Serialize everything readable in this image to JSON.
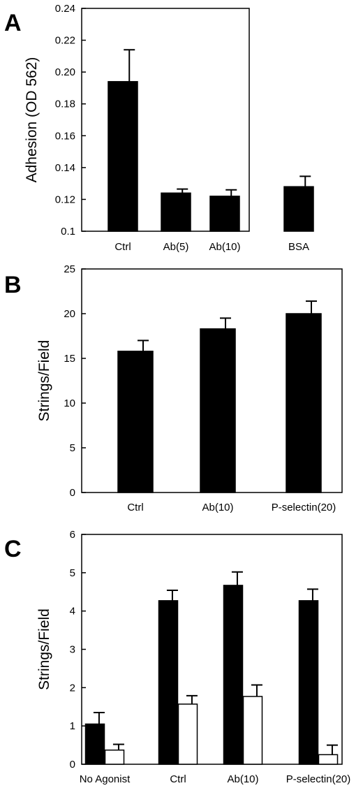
{
  "chart_data": [
    {
      "panel": "A",
      "type": "bar",
      "ylabel": "Adhesion (OD 562)",
      "xlabel": "",
      "ylim": [
        0.1,
        0.24
      ],
      "yticks": [
        "0.1",
        "0.12",
        "0.14",
        "0.16",
        "0.18",
        "0.20",
        "0.22",
        "0.24"
      ],
      "categories": [
        "Ctrl",
        "Ab(5)",
        "Ab(10)",
        "BSA"
      ],
      "series": [
        {
          "fill": "#000000",
          "values": [
            0.194,
            0.124,
            0.122,
            0.128
          ],
          "errors": [
            0.02,
            0.0025,
            0.004,
            0.0065
          ]
        }
      ]
    },
    {
      "panel": "B",
      "type": "bar",
      "ylabel": "Strings/Field",
      "xlabel": "",
      "ylim": [
        0,
        25
      ],
      "yticks": [
        "0",
        "5",
        "10",
        "15",
        "20",
        "25"
      ],
      "categories": [
        "Ctrl",
        "Ab(10)",
        "P-selectin(20)"
      ],
      "series": [
        {
          "fill": "#000000",
          "values": [
            15.8,
            18.3,
            20.0
          ],
          "errors": [
            1.2,
            1.2,
            1.4
          ]
        }
      ]
    },
    {
      "panel": "C",
      "type": "bar",
      "ylabel": "Strings/Field",
      "xlabel": "",
      "ylim": [
        0,
        6
      ],
      "yticks": [
        "0",
        "1",
        "2",
        "3",
        "4",
        "5",
        "6"
      ],
      "categories": [
        "No Agonist",
        "Ctrl",
        "Ab(10)",
        "P-selectin(20)"
      ],
      "series": [
        {
          "fill": "#000000",
          "values": [
            1.05,
            4.27,
            4.67,
            4.27
          ],
          "errors": [
            0.3,
            0.27,
            0.35,
            0.3
          ]
        },
        {
          "fill": "#ffffff",
          "values": [
            0.37,
            1.57,
            1.77,
            0.25
          ],
          "errors": [
            0.15,
            0.22,
            0.3,
            0.25
          ]
        }
      ]
    }
  ]
}
